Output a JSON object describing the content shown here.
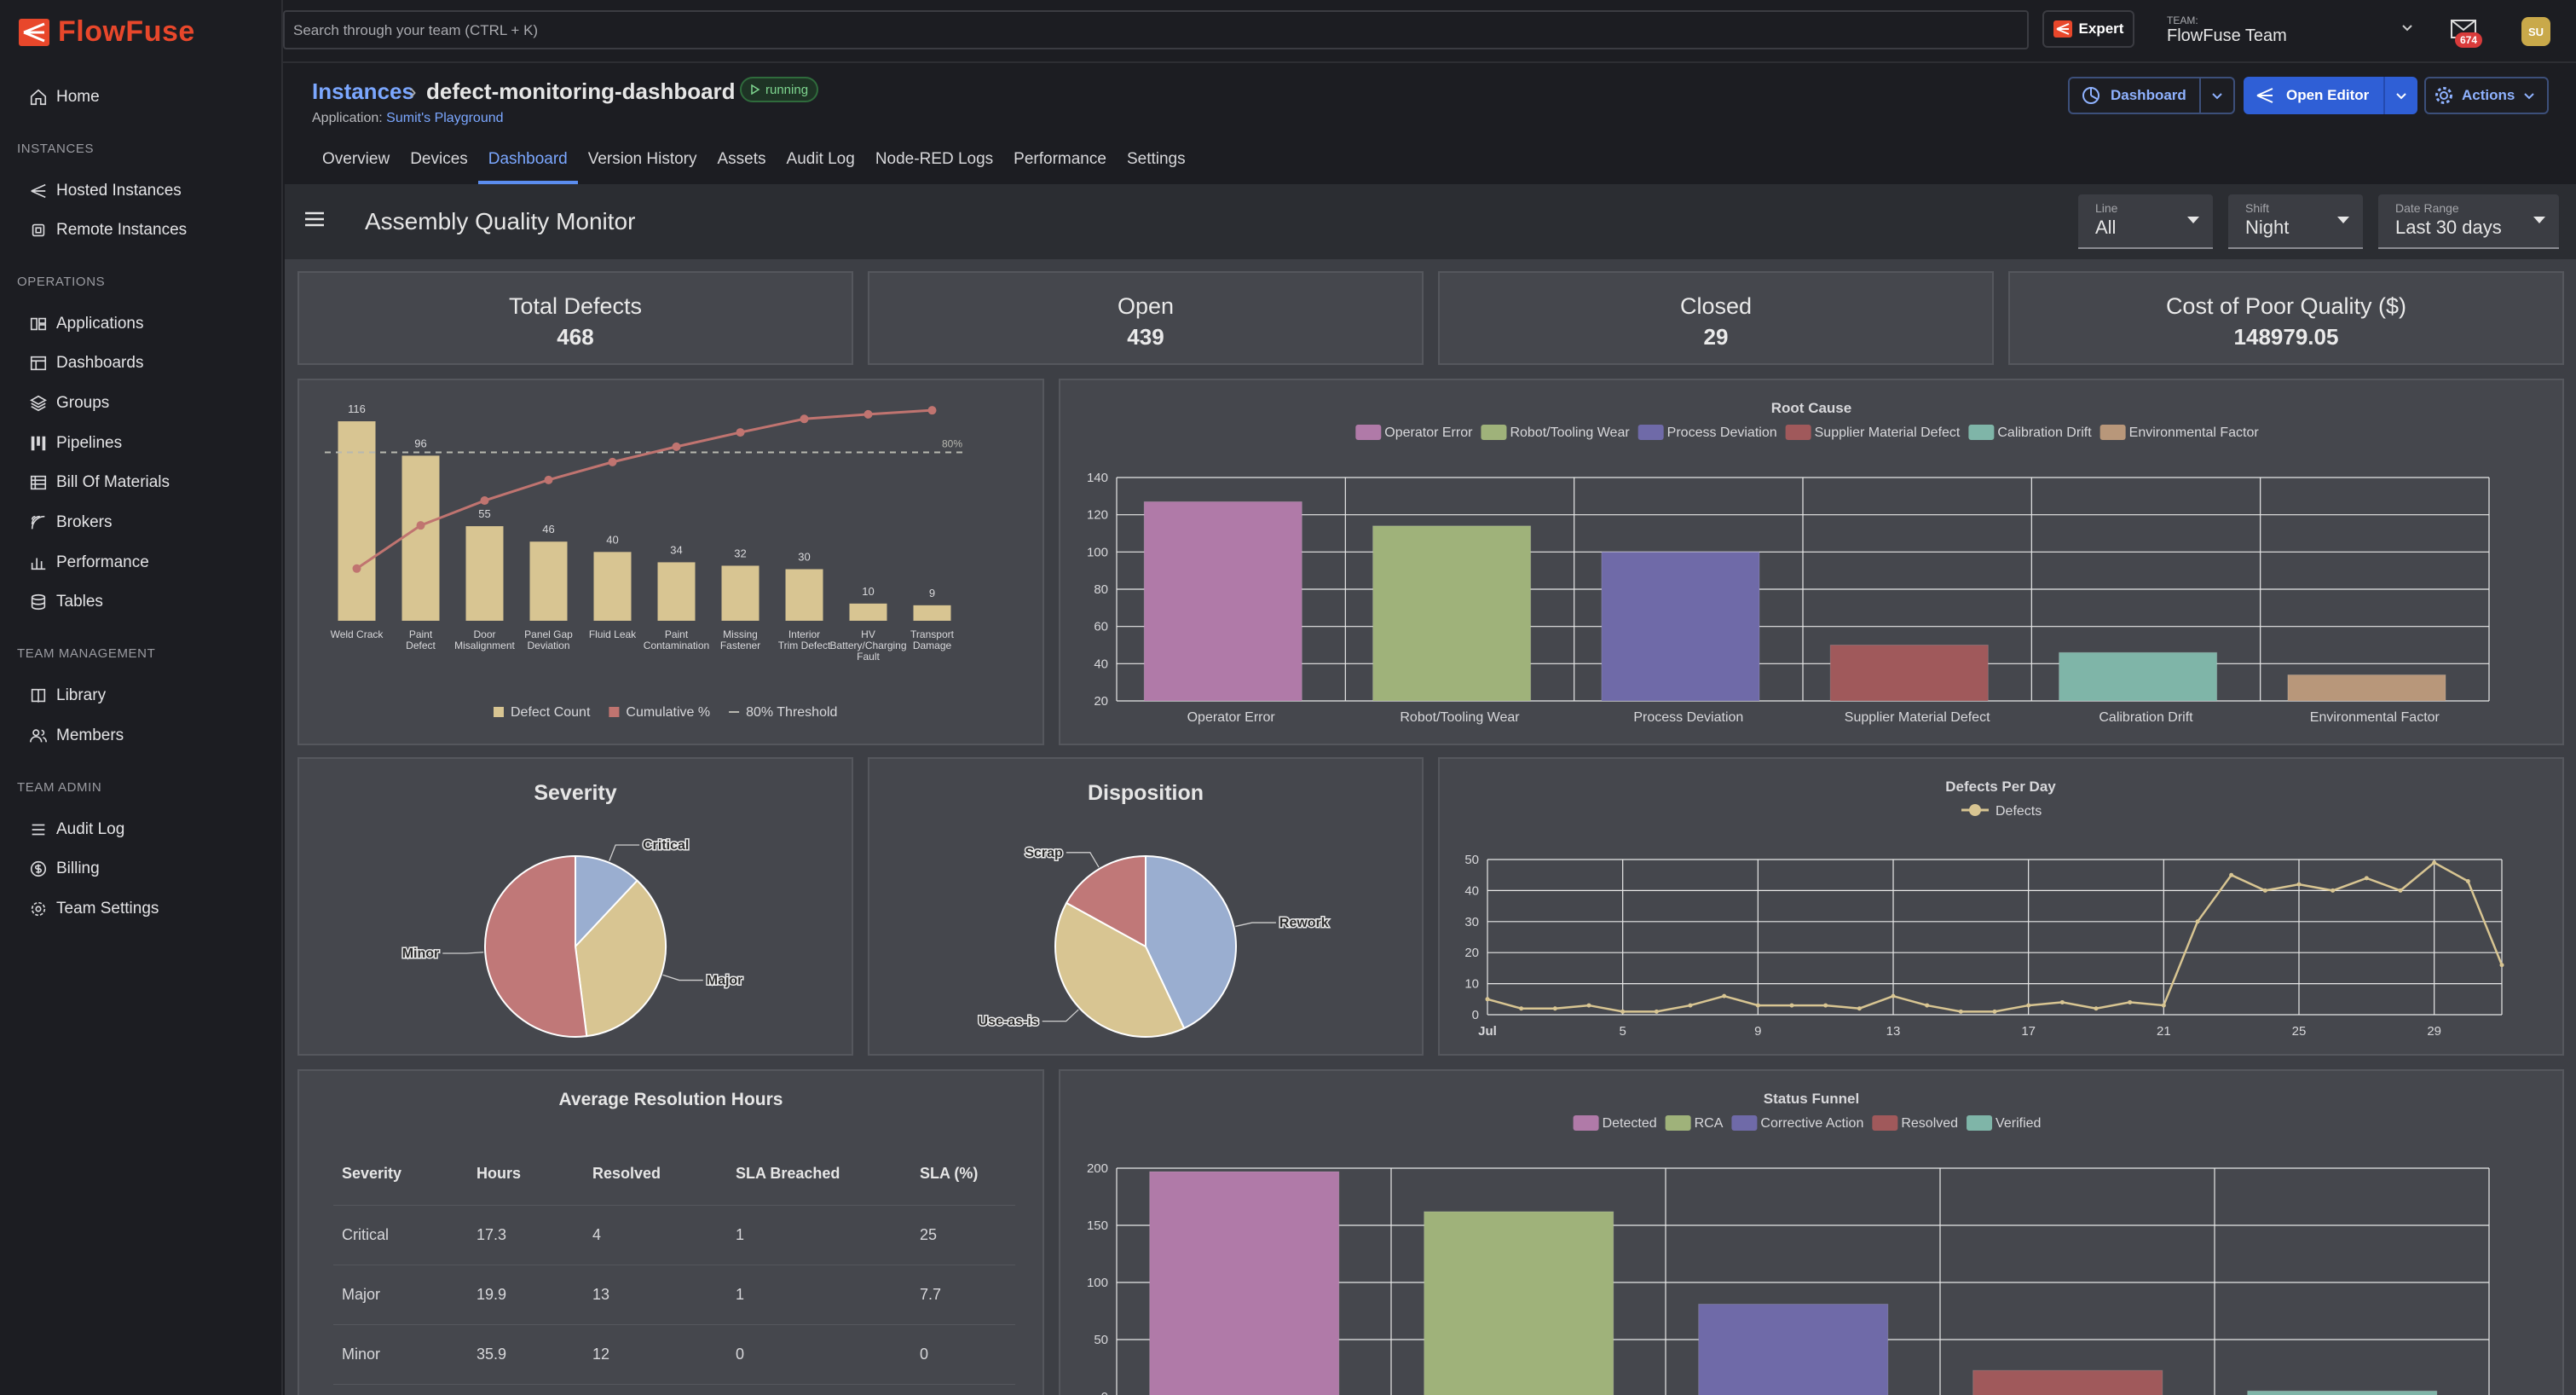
{
  "app": {
    "brand": "FlowFuse",
    "accent": "#e8472b"
  },
  "search": {
    "placeholder": "Search through your team (CTRL + K)"
  },
  "topbar": {
    "expert_label": "Expert",
    "team_label": "TEAM:",
    "team_name": "FlowFuse Team",
    "notifications_count": "674",
    "avatar_initials": "SU"
  },
  "sidebar": {
    "home": "Home",
    "sections": {
      "instances": "INSTANCES",
      "operations": "OPERATIONS",
      "team_management": "TEAM MANAGEMENT",
      "team_admin": "TEAM ADMIN"
    },
    "instances": [
      {
        "label": "Hosted Instances",
        "icon": "hosted-instances-icon"
      },
      {
        "label": "Remote Instances",
        "icon": "remote-instances-icon"
      }
    ],
    "operations": [
      {
        "label": "Applications",
        "icon": "applications-icon"
      },
      {
        "label": "Dashboards",
        "icon": "dashboards-icon"
      },
      {
        "label": "Groups",
        "icon": "groups-icon"
      },
      {
        "label": "Pipelines",
        "icon": "pipelines-icon"
      },
      {
        "label": "Bill Of Materials",
        "icon": "bill-of-materials-icon"
      },
      {
        "label": "Brokers",
        "icon": "brokers-icon"
      },
      {
        "label": "Performance",
        "icon": "performance-icon"
      },
      {
        "label": "Tables",
        "icon": "tables-icon"
      }
    ],
    "team_management": [
      {
        "label": "Library",
        "icon": "library-icon"
      },
      {
        "label": "Members",
        "icon": "members-icon"
      }
    ],
    "team_admin": [
      {
        "label": "Audit Log",
        "icon": "audit-log-icon"
      },
      {
        "label": "Billing",
        "icon": "billing-icon"
      },
      {
        "label": "Team Settings",
        "icon": "team-settings-icon"
      }
    ]
  },
  "header": {
    "breadcrumb_root": "Instances",
    "instance_name": "defect-monitoring-dashboard",
    "status": "running",
    "application_label": "Application:",
    "application_name": "Sumit's Playground",
    "buttons": {
      "dashboard": "Dashboard",
      "open_editor": "Open Editor",
      "actions": "Actions"
    },
    "tabs": [
      "Overview",
      "Devices",
      "Dashboard",
      "Version History",
      "Assets",
      "Audit Log",
      "Node-RED Logs",
      "Performance",
      "Settings"
    ],
    "active_tab": "Dashboard"
  },
  "dashboard": {
    "title": "Assembly Quality Monitor",
    "filters": [
      {
        "label": "Line",
        "value": "All"
      },
      {
        "label": "Shift",
        "value": "Night"
      },
      {
        "label": "Date Range",
        "value": "Last 30 days"
      }
    ],
    "kpis": [
      {
        "title": "Total Defects",
        "value": "468"
      },
      {
        "title": "Open",
        "value": "439"
      },
      {
        "title": "Closed",
        "value": "29"
      },
      {
        "title": "Cost of Poor Quality ($)",
        "value": "148979.05"
      }
    ],
    "colors": {
      "pink": "#b07aa8",
      "green": "#9fb27a",
      "purple": "#6f6aa8",
      "red": "#a0595b",
      "teal": "#7fb5a8",
      "tan": "#b8977a",
      "beige": "#d8c592",
      "line": "#c07470"
    },
    "table": {
      "title": "Average Resolution Hours",
      "columns": [
        "Severity",
        "Hours",
        "Resolved",
        "SLA Breached",
        "SLA (%)"
      ],
      "rows": [
        [
          "Critical",
          "17.3",
          "4",
          "1",
          "25"
        ],
        [
          "Major",
          "19.9",
          "13",
          "1",
          "7.7"
        ],
        [
          "Minor",
          "35.9",
          "12",
          "0",
          "0"
        ]
      ]
    }
  },
  "chart_data": [
    {
      "type": "bar",
      "title": "",
      "categories": [
        "Weld Crack",
        "Paint Defect",
        "Door Misalignment",
        "Panel Gap Deviation",
        "Fluid Leak",
        "Paint Contamination",
        "Missing Fastener",
        "Interior Trim Defect",
        "HV Battery/Charging Fault",
        "Transport Damage"
      ],
      "category_lines": [
        [
          "Weld Crack"
        ],
        [
          "Paint",
          "Defect"
        ],
        [
          "Door",
          "Misalignment"
        ],
        [
          "Panel Gap",
          "Deviation"
        ],
        [
          "Fluid Leak"
        ],
        [
          "Paint",
          "Contamination"
        ],
        [
          "Missing",
          "Fastener"
        ],
        [
          "Interior",
          "Trim Defect"
        ],
        [
          "HV",
          "Battery/Charging",
          "Fault"
        ],
        [
          "Transport",
          "Damage"
        ]
      ],
      "series": [
        {
          "name": "Defect Count",
          "values": [
            116,
            96,
            55,
            46,
            40,
            34,
            32,
            30,
            10,
            9
          ]
        },
        {
          "name": "Cumulative %",
          "values": [
            24.8,
            45.3,
            57.1,
            66.9,
            75.4,
            82.7,
            89.5,
            95.9,
            98.1,
            100
          ]
        },
        {
          "name": "80% Threshold",
          "values": [
            80,
            80,
            80,
            80,
            80,
            80,
            80,
            80,
            80,
            80
          ]
        }
      ],
      "threshold_label": "80%",
      "ylim": [
        0,
        120
      ],
      "legend": "bottom"
    },
    {
      "type": "bar",
      "title": "Root Cause",
      "categories": [
        "Operator Error",
        "Robot/Tooling Wear",
        "Process Deviation",
        "Supplier Material Defect",
        "Calibration Drift",
        "Environmental Factor"
      ],
      "values": [
        127,
        114,
        100,
        50,
        46,
        34
      ],
      "yticks": [
        20,
        40,
        60,
        80,
        100,
        120,
        140
      ],
      "ylim": [
        20,
        140
      ],
      "legend": "top",
      "grid": true
    },
    {
      "type": "pie",
      "title": "Severity",
      "labels": [
        "Critical",
        "Major",
        "Minor"
      ],
      "values": [
        12,
        36,
        52
      ]
    },
    {
      "type": "pie",
      "title": "Disposition",
      "labels": [
        "Rework",
        "Use-as-is",
        "Scrap"
      ],
      "values": [
        43,
        40,
        17
      ]
    },
    {
      "type": "line",
      "title": "Defects Per Day",
      "series": [
        {
          "name": "Defects",
          "values": [
            5,
            2,
            2,
            3,
            1,
            1,
            3,
            6,
            3,
            3,
            3,
            2,
            6,
            3,
            1,
            1,
            3,
            4,
            2,
            4,
            3,
            30,
            45,
            40,
            42,
            40,
            44,
            40,
            49,
            43,
            16
          ]
        }
      ],
      "x_tick_labels": [
        "Jul",
        "5",
        "9",
        "13",
        "17",
        "21",
        "25",
        "29"
      ],
      "x_tick_index": [
        0,
        4,
        8,
        12,
        16,
        20,
        24,
        28
      ],
      "yticks": [
        0,
        10,
        20,
        30,
        40,
        50
      ],
      "ylim": [
        0,
        50
      ],
      "legend": "top",
      "grid": true
    },
    {
      "type": "bar",
      "title": "Status Funnel",
      "categories": [
        "Detected",
        "RCA",
        "Corrective Action",
        "Resolved",
        "Verified"
      ],
      "values": [
        197,
        162,
        81,
        23,
        5
      ],
      "yticks": [
        0,
        50,
        100,
        150,
        200
      ],
      "ylim": [
        0,
        200
      ],
      "legend": "top",
      "grid": true
    }
  ]
}
